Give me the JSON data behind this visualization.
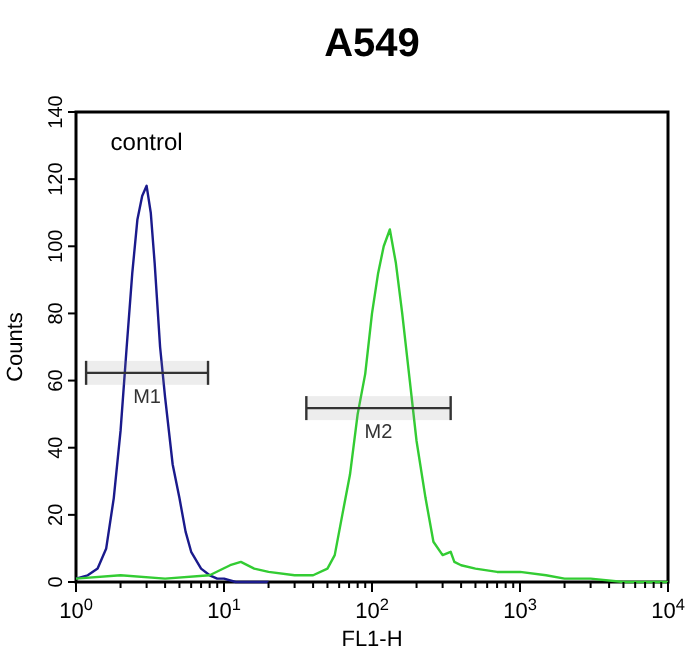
{
  "chart_data": {
    "type": "line",
    "title": "A549",
    "xlabel": "FL1-H",
    "ylabel": "Counts",
    "log": "x",
    "xlim": [
      1,
      10000
    ],
    "ylim": [
      0,
      140
    ],
    "xticks": [
      {
        "value": 1,
        "label": "10$^{0}$"
      },
      {
        "value": 2,
        "label": null
      },
      {
        "value": 3,
        "label": null
      },
      {
        "value": 4,
        "label": null
      },
      {
        "value": 5,
        "label": null
      },
      {
        "value": 6,
        "label": null
      },
      {
        "value": 7,
        "label": null
      },
      {
        "value": 8,
        "label": null
      },
      {
        "value": 9,
        "label": null
      },
      {
        "value": 10,
        "label": "10$^{1}$"
      },
      {
        "value": 20,
        "label": null
      },
      {
        "value": 30,
        "label": null
      },
      {
        "value": 40,
        "label": null
      },
      {
        "value": 50,
        "label": null
      },
      {
        "value": 60,
        "label": null
      },
      {
        "value": 70,
        "label": null
      },
      {
        "value": 80,
        "label": null
      },
      {
        "value": 90,
        "label": null
      },
      {
        "value": 100,
        "label": "10$^{2}$"
      },
      {
        "value": 200,
        "label": null
      },
      {
        "value": 300,
        "label": null
      },
      {
        "value": 400,
        "label": null
      },
      {
        "value": 500,
        "label": null
      },
      {
        "value": 600,
        "label": null
      },
      {
        "value": 700,
        "label": null
      },
      {
        "value": 800,
        "label": null
      },
      {
        "value": 900,
        "label": null
      },
      {
        "value": 1000,
        "label": "10$^{3}$"
      },
      {
        "value": 2000,
        "label": null
      },
      {
        "value": 3000,
        "label": null
      },
      {
        "value": 4000,
        "label": null
      },
      {
        "value": 5000,
        "label": null
      },
      {
        "value": 6000,
        "label": null
      },
      {
        "value": 7000,
        "label": null
      },
      {
        "value": 8000,
        "label": null
      },
      {
        "value": 9000,
        "label": null
      },
      {
        "value": 10000,
        "label": "10$^{4}$"
      }
    ],
    "yticks": [
      0,
      20,
      40,
      60,
      80,
      100,
      120,
      140
    ],
    "grid": false,
    "legend": false,
    "marker": "none",
    "line_style": "solid",
    "series": [
      {
        "name": "control",
        "color": "#1a1a8c",
        "x": [
          1,
          1.2,
          1.4,
          1.6,
          1.8,
          2,
          2.2,
          2.4,
          2.6,
          2.8,
          3,
          3.2,
          3.4,
          3.7,
          4,
          4.5,
          5,
          5.5,
          6,
          7,
          8,
          9,
          10,
          12,
          15,
          20
        ],
        "values": [
          1,
          2,
          4,
          10,
          25,
          45,
          70,
          92,
          108,
          115,
          118,
          110,
          95,
          70,
          55,
          35,
          25,
          15,
          9,
          4,
          2,
          1,
          1,
          0,
          0,
          0
        ]
      },
      {
        "color": "#33cc33",
        "x": [
          1,
          2,
          4,
          8,
          11,
          13,
          16,
          20,
          30,
          40,
          50,
          56,
          63,
          71,
          80,
          90,
          100,
          110,
          120,
          132,
          145,
          160,
          180,
          200,
          230,
          260,
          300,
          340,
          360,
          400,
          500,
          700,
          1000,
          1500,
          2000,
          3000,
          5000,
          10000
        ],
        "values": [
          1,
          2,
          1,
          2,
          5,
          6,
          4,
          3,
          2,
          2,
          4,
          8,
          20,
          32,
          50,
          62,
          80,
          92,
          100,
          105,
          95,
          80,
          60,
          42,
          25,
          12,
          8,
          9,
          6,
          5,
          4,
          3,
          3,
          2,
          1,
          1,
          0,
          0
        ]
      }
    ],
    "bands": [
      {
        "axis": "x",
        "from": 1.17,
        "to": 7.8,
        "label": "M1"
      },
      {
        "axis": "x",
        "from": 36,
        "to": 340,
        "label": "M2"
      }
    ]
  }
}
